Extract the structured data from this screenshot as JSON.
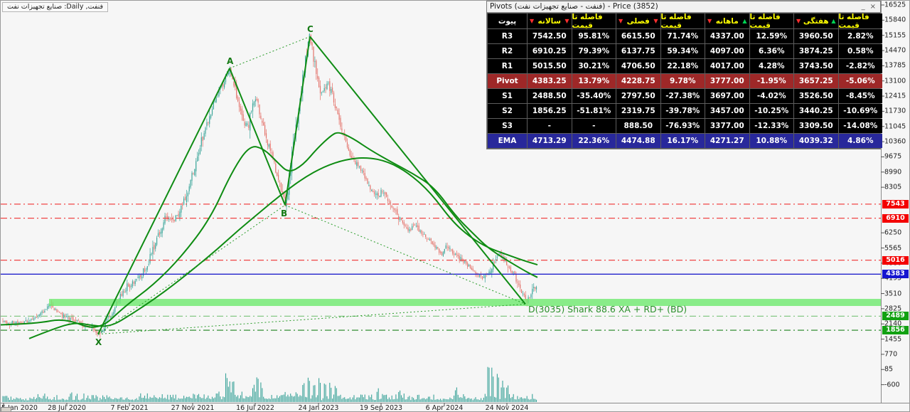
{
  "chart": {
    "symbol_label": "فنفت, Daily: صنايع تجهيزات نفت"
  },
  "chart_data": {
    "type": "candlestick",
    "title": "فنفت, Daily: صنايع تجهيزات نفت",
    "last_price": 3852,
    "y_axis": {
      "top": 16525,
      "bottom": -600,
      "step": 685,
      "hidden_ticks": [
        7620,
        6935
      ]
    },
    "x_axis": {
      "labels": [
        "5 Jan 2020",
        "28 Jul 2020",
        "7 Feb 2021",
        "27 Nov 2021",
        "16 Jul 2022",
        "24 Jan 2023",
        "19 Sep 2023",
        "6 Apr 2024",
        "24 Nov 2024"
      ],
      "x": [
        4,
        93,
        181,
        270,
        358,
        447,
        535,
        624,
        712
      ]
    },
    "levels": [
      {
        "price": 7543,
        "color": "#f04545",
        "style": "dashdot",
        "tag_bg": "#f30000"
      },
      {
        "price": 6910,
        "color": "#f04545",
        "style": "dashdot",
        "tag_bg": "#f30000"
      },
      {
        "price": 5016,
        "color": "#f04545",
        "style": "dashdot",
        "tag_bg": "#f30000"
      },
      {
        "price": 4383,
        "color": "#2222cc",
        "style": "solid",
        "tag_bg": "#1515d0"
      },
      {
        "price": 2489,
        "color": "#85c885",
        "style": "dashdot",
        "tag_bg": "#12a112"
      },
      {
        "price": 1856,
        "color": "#1e821e",
        "style": "dashdot",
        "tag_bg": "#12a112"
      }
    ],
    "zone": {
      "x_start": 68,
      "price_top": 3270,
      "price_bottom": 2950,
      "color": "rgba(110,234,110,0.8)"
    },
    "harmonic": {
      "points": {
        "X": {
          "x": 137,
          "price": 1680
        },
        "A": {
          "x": 322,
          "price": 13670
        },
        "B": {
          "x": 400,
          "price": 7500
        },
        "C": {
          "x": 435,
          "price": 15100
        },
        "D": {
          "x": 738,
          "price": 3035
        }
      },
      "solid_lines": [
        [
          "X",
          "A"
        ],
        [
          "A",
          "B"
        ],
        [
          "B",
          "C"
        ],
        [
          "C",
          "D"
        ]
      ],
      "dotted_lines": [
        [
          "X",
          "B"
        ],
        [
          "A",
          "C"
        ],
        [
          "B",
          "D"
        ],
        [
          "X",
          "D"
        ]
      ],
      "d_annotation": "D(3035) Shark 88.6 XA + RD+ (BD)",
      "line_color": "#0f8c14"
    },
    "colors": {
      "up_candle": "#3aa59a",
      "down_candle": "#e4726a",
      "volume": "#2f9e94",
      "background": "#f6f6f6"
    },
    "series": {
      "price_path": [
        [
          2,
          2250
        ],
        [
          25,
          2150
        ],
        [
          45,
          2350
        ],
        [
          60,
          2700
        ],
        [
          70,
          3000
        ],
        [
          80,
          2700
        ],
        [
          95,
          2400
        ],
        [
          110,
          2250
        ],
        [
          122,
          2050
        ],
        [
          130,
          1900
        ],
        [
          137,
          1680
        ],
        [
          147,
          2150
        ],
        [
          157,
          2650
        ],
        [
          167,
          3350
        ],
        [
          177,
          3800
        ],
        [
          187,
          4000
        ],
        [
          197,
          4300
        ],
        [
          207,
          4850
        ],
        [
          217,
          5700
        ],
        [
          227,
          6500
        ],
        [
          233,
          7100
        ],
        [
          241,
          6700
        ],
        [
          249,
          7000
        ],
        [
          257,
          7600
        ],
        [
          266,
          8400
        ],
        [
          276,
          9700
        ],
        [
          286,
          10800
        ],
        [
          296,
          11700
        ],
        [
          306,
          12600
        ],
        [
          314,
          13100
        ],
        [
          319,
          13400
        ],
        [
          322,
          13670
        ],
        [
          328,
          13000
        ],
        [
          334,
          12200
        ],
        [
          341,
          11300
        ],
        [
          348,
          11000
        ],
        [
          354,
          12000
        ],
        [
          359,
          12400
        ],
        [
          365,
          11600
        ],
        [
          371,
          10700
        ],
        [
          378,
          10100
        ],
        [
          385,
          9400
        ],
        [
          392,
          8500
        ],
        [
          397,
          7900
        ],
        [
          400,
          7500
        ],
        [
          404,
          8300
        ],
        [
          409,
          9500
        ],
        [
          414,
          10700
        ],
        [
          419,
          11900
        ],
        [
          424,
          13000
        ],
        [
          429,
          14100
        ],
        [
          433,
          14900
        ],
        [
          435,
          15100
        ],
        [
          440,
          14200
        ],
        [
          445,
          13200
        ],
        [
          450,
          12400
        ],
        [
          455,
          12700
        ],
        [
          460,
          13050
        ],
        [
          465,
          12600
        ],
        [
          471,
          11900
        ],
        [
          478,
          11100
        ],
        [
          485,
          10400
        ],
        [
          492,
          9800
        ],
        [
          500,
          9400
        ],
        [
          508,
          9000
        ],
        [
          515,
          8600
        ],
        [
          522,
          8200
        ],
        [
          530,
          7900
        ],
        [
          537,
          8200
        ],
        [
          545,
          7800
        ],
        [
          552,
          7400
        ],
        [
          560,
          7000
        ],
        [
          567,
          6700
        ],
        [
          575,
          6400
        ],
        [
          582,
          6650
        ],
        [
          590,
          6350
        ],
        [
          598,
          6050
        ],
        [
          605,
          5850
        ],
        [
          612,
          5600
        ],
        [
          620,
          5350
        ],
        [
          628,
          5650
        ],
        [
          635,
          5350
        ],
        [
          642,
          5150
        ],
        [
          650,
          4950
        ],
        [
          658,
          4750
        ],
        [
          665,
          4550
        ],
        [
          672,
          4350
        ],
        [
          680,
          4150
        ],
        [
          687,
          4500
        ],
        [
          695,
          5000
        ],
        [
          702,
          5300
        ],
        [
          709,
          5000
        ],
        [
          715,
          4700
        ],
        [
          720,
          4450
        ],
        [
          725,
          4150
        ],
        [
          730,
          3850
        ],
        [
          735,
          3500
        ],
        [
          739,
          3100
        ],
        [
          744,
          3350
        ],
        [
          749,
          3650
        ],
        [
          752,
          3800
        ],
        [
          754,
          3852
        ]
      ],
      "ma_fast": [
        [
          0,
          2100
        ],
        [
          50,
          2150
        ],
        [
          90,
          2400
        ],
        [
          137,
          1800
        ],
        [
          175,
          2950
        ],
        [
          215,
          3900
        ],
        [
          255,
          5200
        ],
        [
          295,
          6900
        ],
        [
          325,
          9000
        ],
        [
          350,
          10200
        ],
        [
          370,
          10050
        ],
        [
          390,
          9400
        ],
        [
          405,
          8950
        ],
        [
          425,
          9300
        ],
        [
          445,
          10050
        ],
        [
          465,
          10650
        ],
        [
          475,
          10810
        ],
        [
          495,
          10520
        ],
        [
          520,
          9980
        ],
        [
          550,
          9430
        ],
        [
          580,
          8920
        ],
        [
          610,
          8300
        ],
        [
          640,
          7000
        ],
        [
          665,
          6200
        ],
        [
          685,
          5580
        ],
        [
          710,
          5050
        ],
        [
          740,
          4480
        ],
        [
          755,
          4240
        ]
      ],
      "ma_slow": [
        [
          40,
          1480
        ],
        [
          75,
          1930
        ],
        [
          105,
          2215
        ],
        [
          130,
          2060
        ],
        [
          155,
          2020
        ],
        [
          185,
          2600
        ],
        [
          215,
          3240
        ],
        [
          245,
          3950
        ],
        [
          275,
          4720
        ],
        [
          305,
          5520
        ],
        [
          335,
          6390
        ],
        [
          365,
          7190
        ],
        [
          395,
          7990
        ],
        [
          425,
          8700
        ],
        [
          455,
          9240
        ],
        [
          485,
          9560
        ],
        [
          515,
          9660
        ],
        [
          545,
          9465
        ],
        [
          575,
          8920
        ],
        [
          605,
          8050
        ],
        [
          635,
          6770
        ],
        [
          660,
          6060
        ],
        [
          685,
          5580
        ],
        [
          710,
          5290
        ],
        [
          735,
          5000
        ],
        [
          755,
          4810
        ]
      ]
    },
    "volume_spikes": [
      [
        317,
        44
      ],
      [
        322,
        30
      ],
      [
        327,
        34
      ],
      [
        356,
        26
      ],
      [
        361,
        40
      ],
      [
        366,
        28
      ],
      [
        426,
        30
      ],
      [
        433,
        38
      ],
      [
        441,
        28
      ],
      [
        448,
        36
      ],
      [
        456,
        30
      ],
      [
        463,
        28
      ],
      [
        471,
        25
      ],
      [
        531,
        20
      ],
      [
        561,
        18
      ],
      [
        641,
        22
      ],
      [
        686,
        58
      ],
      [
        691,
        50
      ],
      [
        699,
        44
      ],
      [
        706,
        30
      ],
      [
        713,
        26
      ]
    ]
  },
  "pivots_table": {
    "title": "Pivots (فنفت - صنايع تجهيزات نفت) - Price (3852)",
    "btn_min": "_",
    "btn_close": "×",
    "columns": [
      {
        "label": "پیوت",
        "type": "plain"
      },
      {
        "label": "سالانه",
        "type": "tf",
        "trend": "down"
      },
      {
        "label": "فاصله تا قیمت",
        "type": "dist"
      },
      {
        "label": "فصلی",
        "type": "tf",
        "trend": "down"
      },
      {
        "label": "فاصله تا قیمت",
        "type": "dist"
      },
      {
        "label": "ماهانه",
        "type": "tf",
        "trend": "up"
      },
      {
        "label": "فاصله تا قیمت",
        "type": "dist"
      },
      {
        "label": "هفتگی",
        "type": "tf",
        "trend": "up"
      },
      {
        "label": "فاصله تا قیمت",
        "type": "dist"
      }
    ],
    "rows": [
      {
        "label": "R3",
        "style": "normal",
        "values": [
          "7542.50",
          "95.81%",
          "6615.50",
          "71.74%",
          "4337.00",
          "12.59%",
          "3960.50",
          "2.82%"
        ]
      },
      {
        "label": "R2",
        "style": "normal",
        "values": [
          "6910.25",
          "79.39%",
          "6137.75",
          "59.34%",
          "4097.00",
          "6.36%",
          "3874.25",
          "0.58%"
        ]
      },
      {
        "label": "R1",
        "style": "normal",
        "values": [
          "5015.50",
          "30.21%",
          "4706.50",
          "22.18%",
          "4017.00",
          "4.28%",
          "3743.50",
          "-2.82%"
        ]
      },
      {
        "label": "Pivot",
        "style": "pivot",
        "values": [
          "4383.25",
          "13.79%",
          "4228.75",
          "9.78%",
          "3777.00",
          "-1.95%",
          "3657.25",
          "-5.06%"
        ]
      },
      {
        "label": "S1",
        "style": "normal",
        "values": [
          "2488.50",
          "-35.40%",
          "2797.50",
          "-27.38%",
          "3697.00",
          "-4.02%",
          "3526.50",
          "-8.45%"
        ]
      },
      {
        "label": "S2",
        "style": "normal",
        "values": [
          "1856.25",
          "-51.81%",
          "2319.75",
          "-39.78%",
          "3457.00",
          "-10.25%",
          "3440.25",
          "-10.69%"
        ]
      },
      {
        "label": "S3",
        "style": "normal",
        "values": [
          "-",
          "-",
          "888.50",
          "-76.93%",
          "3377.00",
          "-12.33%",
          "3309.50",
          "-14.08%"
        ]
      },
      {
        "label": "EMA",
        "style": "ema",
        "values": [
          "4713.29",
          "22.36%",
          "4474.88",
          "16.17%",
          "4271.27",
          "10.88%",
          "4039.32",
          "4.86%"
        ]
      }
    ]
  }
}
